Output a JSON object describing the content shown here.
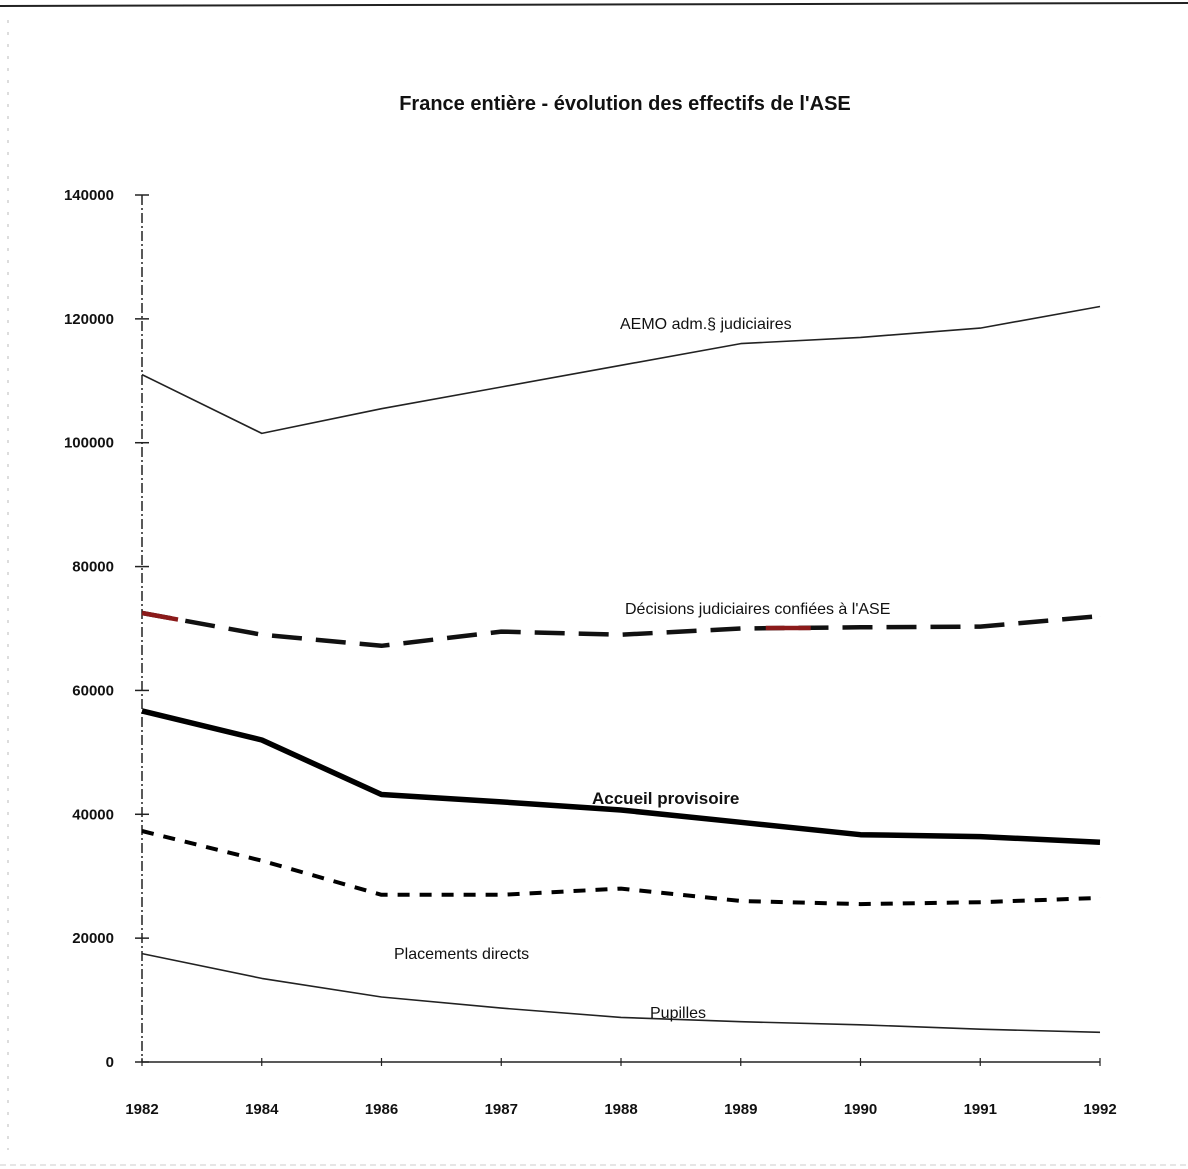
{
  "chart_data": {
    "type": "line",
    "title": "France entière - évolution des effectifs de l'ASE",
    "xlabel": "",
    "ylabel": "",
    "categories": [
      "1982",
      "1984",
      "1986",
      "1987",
      "1988",
      "1989",
      "1990",
      "1991",
      "1992"
    ],
    "ylim": [
      0,
      140000
    ],
    "yticks": [
      "0",
      "20000",
      "40000",
      "60000",
      "80000",
      "100000",
      "120000",
      "140000"
    ],
    "grid": false,
    "legend": "none",
    "series": [
      {
        "name": "AEMO adm.§ judiciaires",
        "values": [
          111000,
          101500,
          105500,
          109000,
          112500,
          116000,
          117000,
          118500,
          122000
        ],
        "style": "thin",
        "color": "#222222"
      },
      {
        "name": "Décisions judiciaires confiées à l'ASE",
        "values": [
          72500,
          69000,
          67200,
          69500,
          69000,
          70000,
          70200,
          70300,
          72000
        ],
        "style": "long-dash",
        "color": "#111111",
        "accent_color": "#8b1a1a"
      },
      {
        "name": "Accueil provisoire",
        "values": [
          56700,
          52000,
          43200,
          42000,
          40700,
          38700,
          36700,
          36400,
          35500
        ],
        "style": "thick",
        "color": "#000000"
      },
      {
        "name": "Placements directs",
        "values": [
          37300,
          32500,
          27000,
          27000,
          28000,
          26000,
          25500,
          25800,
          26500
        ],
        "style": "short-dash",
        "color": "#000000"
      },
      {
        "name": "Pupilles",
        "values": [
          17500,
          13500,
          10500,
          8700,
          7200,
          6500,
          6000,
          5300,
          4800
        ],
        "style": "thin",
        "color": "#222222"
      }
    ]
  }
}
